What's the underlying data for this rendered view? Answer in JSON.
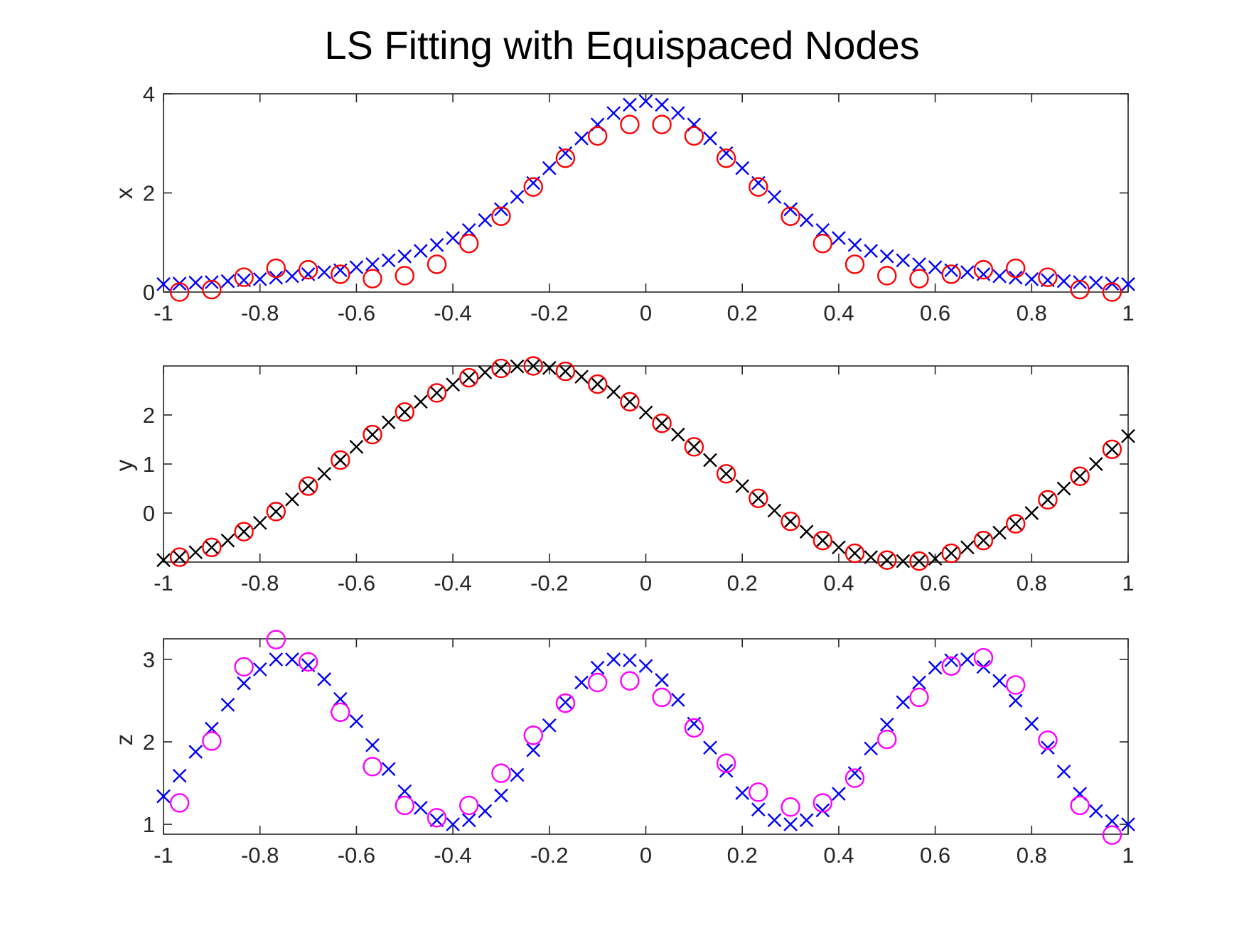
{
  "chart_data": {
    "title": "LS Fitting with Equispaced Nodes",
    "type": "scatter",
    "subplots": [
      {
        "ylabel": "x",
        "xlim": [
          -1,
          1
        ],
        "ylim": [
          0,
          4
        ],
        "xticks": [
          "-1",
          "-0.8",
          "-0.6",
          "-0.4",
          "-0.2",
          "0",
          "0.2",
          "0.4",
          "0.6",
          "0.8",
          "1"
        ],
        "yticks": [
          "0",
          "2",
          "4"
        ],
        "ytick_values": [
          0,
          2,
          4
        ],
        "series": [
          {
            "marker": "x",
            "color": "#0000ff",
            "x": [
              -1.0,
              -0.9667,
              -0.9333,
              -0.9,
              -0.8667,
              -0.8333,
              -0.8,
              -0.7667,
              -0.7333,
              -0.7,
              -0.6667,
              -0.6333,
              -0.6,
              -0.5667,
              -0.5333,
              -0.5,
              -0.4667,
              -0.4333,
              -0.4,
              -0.3667,
              -0.3333,
              -0.3,
              -0.2667,
              -0.2333,
              -0.2,
              -0.1667,
              -0.1333,
              -0.1,
              -0.0667,
              -0.0333,
              0.0,
              0.0333,
              0.0667,
              0.1,
              0.1333,
              0.1667,
              0.2,
              0.2333,
              0.2667,
              0.3,
              0.3333,
              0.3667,
              0.4,
              0.4333,
              0.4667,
              0.5,
              0.5333,
              0.5667,
              0.6,
              0.6333,
              0.6667,
              0.7,
              0.7333,
              0.7667,
              0.8,
              0.8333,
              0.8667,
              0.9,
              0.9333,
              0.9667,
              1.0
            ],
            "y": [
              0.16,
              0.17,
              0.19,
              0.2,
              0.22,
              0.24,
              0.26,
              0.29,
              0.32,
              0.36,
              0.4,
              0.44,
              0.5,
              0.56,
              0.64,
              0.72,
              0.83,
              0.95,
              1.09,
              1.25,
              1.45,
              1.67,
              1.92,
              2.2,
              2.5,
              2.8,
              3.1,
              3.38,
              3.61,
              3.78,
              3.85,
              3.78,
              3.61,
              3.38,
              3.1,
              2.8,
              2.5,
              2.2,
              1.92,
              1.67,
              1.45,
              1.25,
              1.09,
              0.95,
              0.83,
              0.72,
              0.64,
              0.56,
              0.5,
              0.44,
              0.4,
              0.36,
              0.32,
              0.29,
              0.26,
              0.24,
              0.22,
              0.2,
              0.19,
              0.17,
              0.16
            ]
          },
          {
            "marker": "o",
            "color": "#ff0000",
            "x": [
              -0.9667,
              -0.9,
              -0.8333,
              -0.7667,
              -0.7,
              -0.6333,
              -0.5667,
              -0.5,
              -0.4333,
              -0.3667,
              -0.3,
              -0.2333,
              -0.1667,
              -0.1,
              -0.0333,
              0.0333,
              0.1,
              0.1667,
              0.2333,
              0.3,
              0.3667,
              0.4333,
              0.5,
              0.5667,
              0.6333,
              0.7,
              0.7667,
              0.8333,
              0.9,
              0.9667
            ],
            "y": [
              0.0,
              0.05,
              0.3,
              0.48,
              0.45,
              0.36,
              0.27,
              0.33,
              0.56,
              0.98,
              1.53,
              2.12,
              2.7,
              3.15,
              3.38,
              3.38,
              3.15,
              2.7,
              2.12,
              1.53,
              0.98,
              0.56,
              0.33,
              0.27,
              0.36,
              0.45,
              0.48,
              0.3,
              0.05,
              0.0
            ]
          }
        ]
      },
      {
        "ylabel": "y",
        "xlim": [
          -1,
          1
        ],
        "ylim": [
          -1,
          3
        ],
        "xticks": [
          "-1",
          "-0.8",
          "-0.6",
          "-0.4",
          "-0.2",
          "0",
          "0.2",
          "0.4",
          "0.6",
          "0.8",
          "1"
        ],
        "yticks": [
          "0",
          "1",
          "2"
        ],
        "ytick_values": [
          0,
          1,
          2
        ],
        "series": [
          {
            "marker": "x",
            "color": "#000000",
            "x": [
              -1.0,
              -0.9667,
              -0.9333,
              -0.9,
              -0.8667,
              -0.8333,
              -0.8,
              -0.7667,
              -0.7333,
              -0.7,
              -0.6667,
              -0.6333,
              -0.6,
              -0.5667,
              -0.5333,
              -0.5,
              -0.4667,
              -0.4333,
              -0.4,
              -0.3667,
              -0.3333,
              -0.3,
              -0.2667,
              -0.2333,
              -0.2,
              -0.1667,
              -0.1333,
              -0.1,
              -0.0667,
              -0.0333,
              0.0,
              0.0333,
              0.0667,
              0.1,
              0.1333,
              0.1667,
              0.2,
              0.2333,
              0.2667,
              0.3,
              0.3333,
              0.3667,
              0.4,
              0.4333,
              0.4667,
              0.5,
              0.5333,
              0.5667,
              0.6,
              0.6333,
              0.6667,
              0.7,
              0.7333,
              0.7667,
              0.8,
              0.8333,
              0.8667,
              0.9,
              0.9333,
              0.9667,
              1.0
            ],
            "y": [
              -0.96,
              -0.9,
              -0.8,
              -0.7,
              -0.56,
              -0.38,
              -0.2,
              0.03,
              0.28,
              0.55,
              0.8,
              1.08,
              1.35,
              1.6,
              1.85,
              2.06,
              2.27,
              2.45,
              2.62,
              2.76,
              2.87,
              2.95,
              2.99,
              3.0,
              2.96,
              2.89,
              2.78,
              2.63,
              2.47,
              2.27,
              2.05,
              1.83,
              1.6,
              1.35,
              1.08,
              0.8,
              0.55,
              0.3,
              0.05,
              -0.17,
              -0.38,
              -0.56,
              -0.7,
              -0.82,
              -0.9,
              -0.96,
              -0.98,
              -0.98,
              -0.93,
              -0.82,
              -0.7,
              -0.56,
              -0.4,
              -0.22,
              0.0,
              0.27,
              0.5,
              0.75,
              1.0,
              1.3,
              1.57
            ]
          },
          {
            "marker": "o",
            "color": "#ff0000",
            "x": [
              -0.9667,
              -0.9,
              -0.8333,
              -0.7667,
              -0.7,
              -0.6333,
              -0.5667,
              -0.5,
              -0.4333,
              -0.3667,
              -0.3,
              -0.2333,
              -0.1667,
              -0.1,
              -0.0333,
              0.0333,
              0.1,
              0.1667,
              0.2333,
              0.3,
              0.3667,
              0.4333,
              0.5,
              0.5667,
              0.6333,
              0.7,
              0.7667,
              0.8333,
              0.9,
              0.9667
            ],
            "y": [
              -0.9,
              -0.7,
              -0.38,
              0.03,
              0.55,
              1.08,
              1.6,
              2.06,
              2.45,
              2.76,
              2.95,
              3.0,
              2.89,
              2.63,
              2.27,
              1.83,
              1.35,
              0.8,
              0.3,
              -0.17,
              -0.56,
              -0.82,
              -0.96,
              -0.98,
              -0.82,
              -0.56,
              -0.22,
              0.27,
              0.75,
              1.3
            ]
          }
        ]
      },
      {
        "ylabel": "z",
        "xlim": [
          -1,
          1
        ],
        "ylim": [
          0.88,
          3.25
        ],
        "xticks": [
          "-1",
          "-0.8",
          "-0.6",
          "-0.4",
          "-0.2",
          "0",
          "0.2",
          "0.4",
          "0.6",
          "0.8",
          "1"
        ],
        "yticks": [
          "1",
          "2",
          "3"
        ],
        "ytick_values": [
          1,
          2,
          3
        ],
        "series": [
          {
            "marker": "x",
            "color": "#0000ff",
            "x": [
              -1.0,
              -0.9667,
              -0.9333,
              -0.9,
              -0.8667,
              -0.8333,
              -0.8,
              -0.7667,
              -0.7333,
              -0.7,
              -0.6667,
              -0.6333,
              -0.6,
              -0.5667,
              -0.5333,
              -0.5,
              -0.4667,
              -0.4333,
              -0.4,
              -0.3667,
              -0.3333,
              -0.3,
              -0.2667,
              -0.2333,
              -0.2,
              -0.1667,
              -0.1333,
              -0.1,
              -0.0667,
              -0.0333,
              0.0,
              0.0333,
              0.0667,
              0.1,
              0.1333,
              0.1667,
              0.2,
              0.2333,
              0.2667,
              0.3,
              0.3333,
              0.3667,
              0.4,
              0.4333,
              0.4667,
              0.5,
              0.5333,
              0.5667,
              0.6,
              0.6333,
              0.6667,
              0.7,
              0.7333,
              0.7667,
              0.8,
              0.8333,
              0.8667,
              0.9,
              0.9333,
              0.9667,
              1.0
            ],
            "y": [
              1.34,
              1.59,
              1.88,
              2.16,
              2.45,
              2.71,
              2.88,
              3.0,
              3.0,
              2.93,
              2.76,
              2.52,
              2.25,
              1.96,
              1.67,
              1.4,
              1.2,
              1.05,
              1.0,
              1.05,
              1.16,
              1.35,
              1.6,
              1.9,
              2.2,
              2.48,
              2.72,
              2.9,
              3.0,
              2.99,
              2.92,
              2.75,
              2.51,
              2.22,
              1.93,
              1.65,
              1.38,
              1.18,
              1.05,
              1.0,
              1.05,
              1.17,
              1.37,
              1.62,
              1.92,
              2.21,
              2.48,
              2.72,
              2.9,
              2.99,
              3.0,
              2.91,
              2.74,
              2.5,
              2.22,
              1.93,
              1.64,
              1.37,
              1.16,
              1.04,
              1.0
            ]
          },
          {
            "marker": "o",
            "color": "#ff00ff",
            "x": [
              -0.9667,
              -0.9,
              -0.8333,
              -0.7667,
              -0.7,
              -0.6333,
              -0.5667,
              -0.5,
              -0.4333,
              -0.3667,
              -0.3,
              -0.2333,
              -0.1667,
              -0.1,
              -0.0333,
              0.0333,
              0.1,
              0.1667,
              0.2333,
              0.3,
              0.3667,
              0.4333,
              0.5,
              0.5667,
              0.6333,
              0.7,
              0.7667,
              0.8333,
              0.9,
              0.9667
            ],
            "y": [
              1.26,
              2.01,
              2.91,
              3.24,
              2.97,
              2.36,
              1.7,
              1.23,
              1.08,
              1.23,
              1.62,
              2.08,
              2.47,
              2.72,
              2.74,
              2.54,
              2.17,
              1.74,
              1.39,
              1.21,
              1.26,
              1.56,
              2.03,
              2.54,
              2.92,
              3.02,
              2.69,
              2.02,
              1.23,
              0.87
            ]
          }
        ]
      }
    ]
  }
}
